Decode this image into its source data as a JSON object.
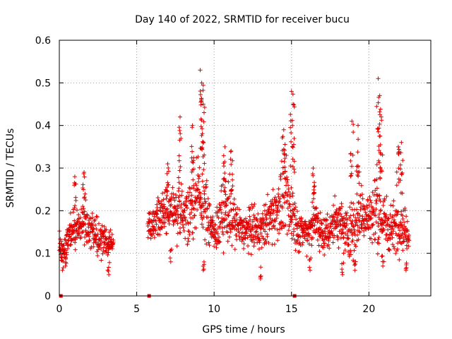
{
  "chart_data": {
    "type": "scatter",
    "title": "Day 140 of 2022, SRMTID for receiver bucu",
    "xlabel": "GPS time / hours",
    "ylabel": "SRMTID / TECUs",
    "xlim": [
      0,
      24
    ],
    "ylim": [
      0,
      0.6
    ],
    "x_ticks": [
      0,
      5,
      10,
      15,
      20
    ],
    "y_ticks": [
      0,
      0.1,
      0.2,
      0.3,
      0.4,
      0.5,
      0.6
    ],
    "x_tick_labels": [
      "0",
      "5",
      "10",
      "15",
      "20"
    ],
    "y_tick_labels": [
      "0",
      "0.1",
      "0.2",
      "0.3",
      "0.4",
      "0.5",
      "0.6"
    ],
    "grid": true,
    "marker": "plus",
    "series_color": "#e00000",
    "zero_markers": [
      0.1,
      5.8,
      15.2
    ],
    "envelope": [
      [
        0.0,
        0.12,
        0.02
      ],
      [
        0.3,
        0.1,
        0.02
      ],
      [
        0.6,
        0.14,
        0.025
      ],
      [
        1.0,
        0.15,
        0.03
      ],
      [
        1.5,
        0.17,
        0.03
      ],
      [
        2.0,
        0.15,
        0.03
      ],
      [
        2.5,
        0.14,
        0.03
      ],
      [
        3.0,
        0.13,
        0.03
      ],
      [
        3.4,
        0.12,
        0.02
      ],
      [
        5.8,
        0.16,
        0.025
      ],
      [
        6.5,
        0.19,
        0.035
      ],
      [
        7.3,
        0.2,
        0.04
      ],
      [
        8.0,
        0.19,
        0.05
      ],
      [
        8.5,
        0.21,
        0.05
      ],
      [
        9.0,
        0.24,
        0.06
      ],
      [
        9.5,
        0.2,
        0.05
      ],
      [
        10.0,
        0.14,
        0.03
      ],
      [
        10.5,
        0.19,
        0.05
      ],
      [
        11.0,
        0.2,
        0.05
      ],
      [
        11.5,
        0.16,
        0.04
      ],
      [
        12.0,
        0.15,
        0.03
      ],
      [
        12.5,
        0.16,
        0.04
      ],
      [
        13.0,
        0.15,
        0.03
      ],
      [
        13.5,
        0.18,
        0.04
      ],
      [
        14.0,
        0.2,
        0.05
      ],
      [
        14.5,
        0.23,
        0.06
      ],
      [
        15.0,
        0.2,
        0.06
      ],
      [
        15.5,
        0.15,
        0.03
      ],
      [
        16.0,
        0.15,
        0.03
      ],
      [
        16.5,
        0.18,
        0.04
      ],
      [
        17.0,
        0.14,
        0.03
      ],
      [
        17.5,
        0.16,
        0.04
      ],
      [
        18.0,
        0.18,
        0.04
      ],
      [
        18.5,
        0.15,
        0.04
      ],
      [
        19.0,
        0.16,
        0.05
      ],
      [
        19.5,
        0.2,
        0.05
      ],
      [
        20.0,
        0.18,
        0.05
      ],
      [
        20.5,
        0.2,
        0.06
      ],
      [
        21.0,
        0.17,
        0.05
      ],
      [
        21.5,
        0.16,
        0.04
      ],
      [
        22.0,
        0.17,
        0.04
      ],
      [
        22.5,
        0.15,
        0.03
      ]
    ],
    "gaps": [
      [
        3.5,
        5.7
      ],
      [
        22.6,
        24
      ]
    ],
    "spikes": [
      [
        1.0,
        0.28
      ],
      [
        1.6,
        0.29
      ],
      [
        7.0,
        0.31
      ],
      [
        7.8,
        0.42
      ],
      [
        8.6,
        0.4
      ],
      [
        9.1,
        0.53
      ],
      [
        9.2,
        0.5
      ],
      [
        9.3,
        0.45
      ],
      [
        10.7,
        0.35
      ],
      [
        11.1,
        0.34
      ],
      [
        14.5,
        0.39
      ],
      [
        15.0,
        0.48
      ],
      [
        15.1,
        0.45
      ],
      [
        16.4,
        0.3
      ],
      [
        18.9,
        0.41
      ],
      [
        19.3,
        0.4
      ],
      [
        20.6,
        0.51
      ],
      [
        20.7,
        0.47
      ],
      [
        20.8,
        0.42
      ],
      [
        21.9,
        0.35
      ],
      [
        22.1,
        0.36
      ]
    ],
    "lows": [
      [
        0.2,
        0.06
      ],
      [
        0.4,
        0.07
      ],
      [
        3.2,
        0.05
      ],
      [
        7.2,
        0.08
      ],
      [
        9.3,
        0.06
      ],
      [
        13.0,
        0.04
      ],
      [
        16.2,
        0.06
      ],
      [
        18.3,
        0.05
      ],
      [
        19.1,
        0.06
      ],
      [
        20.9,
        0.07
      ],
      [
        22.4,
        0.06
      ]
    ]
  }
}
